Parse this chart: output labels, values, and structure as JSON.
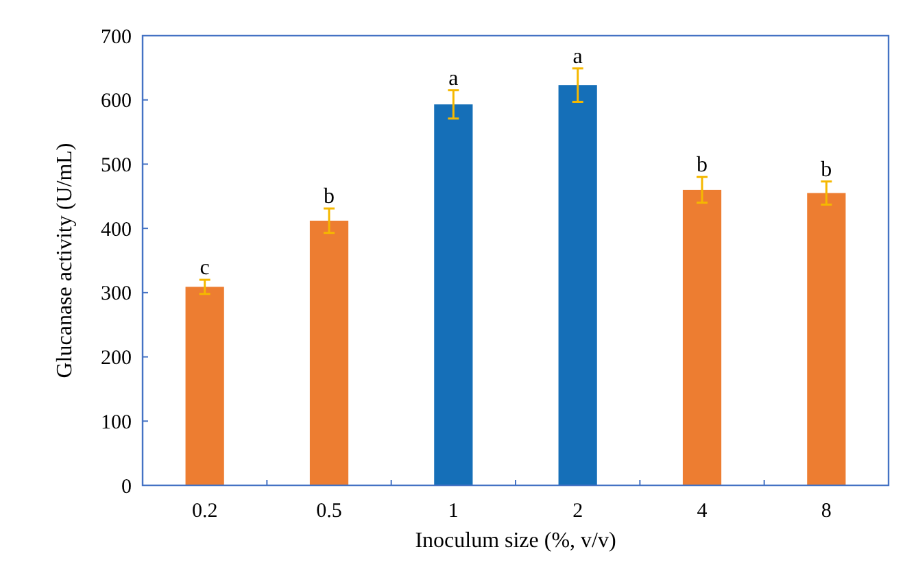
{
  "chart_data": {
    "type": "bar",
    "xlabel": "Inoculum size (%, v/v)",
    "ylabel": "Glucanase activity (U/mL)",
    "categories": [
      "0.2",
      "0.5",
      "1",
      "2",
      "4",
      "8"
    ],
    "values": [
      309,
      412,
      593,
      623,
      460,
      455
    ],
    "colors": [
      "#ed7d31",
      "#ed7d31",
      "#156fb8",
      "#156fb8",
      "#ed7d31",
      "#ed7d31"
    ],
    "errors": [
      11,
      19,
      22,
      26,
      20,
      18
    ],
    "ylim": [
      0,
      700
    ],
    "yticks": [
      0,
      100,
      200,
      300,
      400,
      500,
      600,
      700
    ],
    "annotations": [
      {
        "text": "c",
        "x": "0.2",
        "y": 320
      },
      {
        "text": "b",
        "x": "0.5",
        "y": 431
      },
      {
        "text": "a",
        "x": "1",
        "y": 615
      },
      {
        "text": "a",
        "x": "2",
        "y": 649
      },
      {
        "text": "b",
        "x": "4",
        "y": 480
      },
      {
        "text": "b",
        "x": "8",
        "y": 473
      }
    ]
  }
}
